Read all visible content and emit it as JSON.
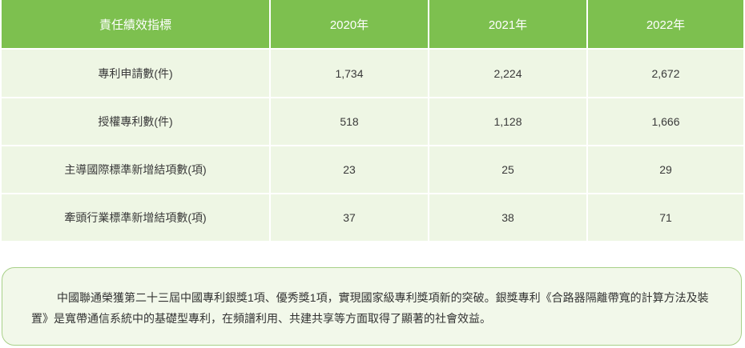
{
  "table": {
    "headers": [
      "責任績效指標",
      "2020年",
      "2021年",
      "2022年"
    ],
    "rows": [
      {
        "indicator": "專利申請數(件)",
        "values": [
          "1,734",
          "2,224",
          "2,672"
        ]
      },
      {
        "indicator": "授權專利數(件)",
        "values": [
          "518",
          "1,128",
          "1,666"
        ]
      },
      {
        "indicator": "主導國際標準新增結項數(項)",
        "values": [
          "23",
          "25",
          "29"
        ]
      },
      {
        "indicator": "牽頭行業標準新增結項數(項)",
        "values": [
          "37",
          "38",
          "71"
        ]
      }
    ]
  },
  "note": {
    "text": "中國聯通榮獲第二十三屆中國專利銀獎1項、優秀獎1項，實現國家級專利獎項新的突破。銀獎專利《合路器隔離帶寬的計算方法及裝置》是寬帶通信系統中的基礎型專利，在頻譜利用、共建共享等方面取得了顯著的社會效益。"
  },
  "colors": {
    "header_bg": "#7dc04f",
    "cell_bg": "#eef6e4",
    "note_border": "#a8d088",
    "note_bg": "#f2f8ea"
  }
}
